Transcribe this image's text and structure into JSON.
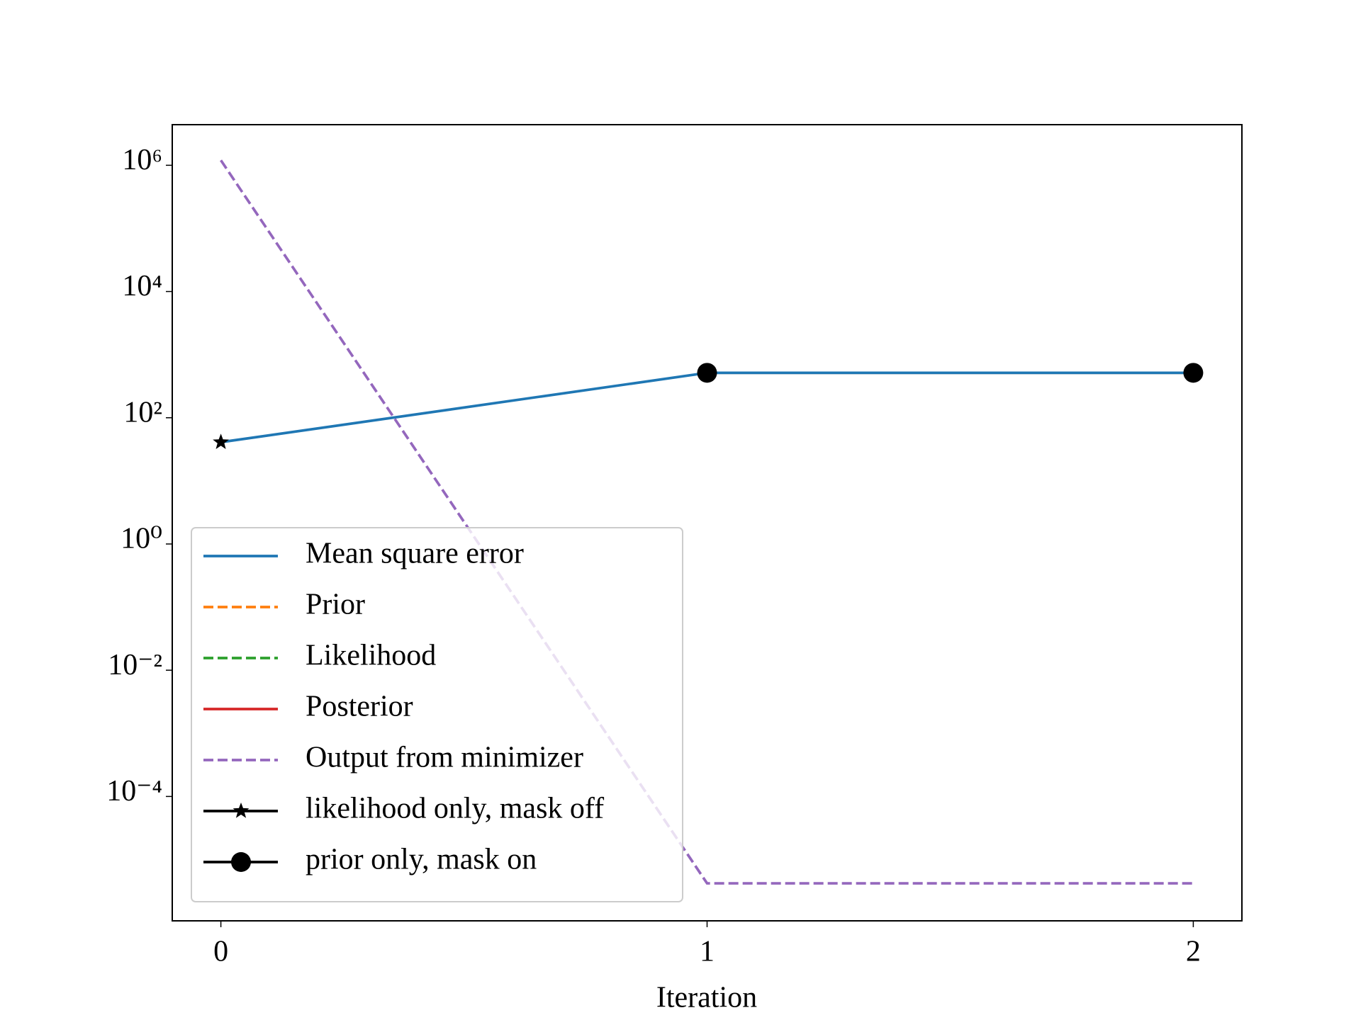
{
  "chart_data": {
    "type": "line",
    "x_label": "Iteration",
    "x": [
      0,
      1,
      2
    ],
    "xlim": [
      -0.1,
      2.1
    ],
    "xticks": [
      0,
      1,
      2
    ],
    "ylog": true,
    "ylim": [
      1.07e-06,
      4400000
    ],
    "yticks": [
      {
        "value": 1000000,
        "label": "10⁶"
      },
      {
        "value": 10000,
        "label": "10⁴"
      },
      {
        "value": 100,
        "label": "10²"
      },
      {
        "value": 1,
        "label": "10⁰"
      },
      {
        "value": 0.01,
        "label": "10⁻²"
      },
      {
        "value": 0.0001,
        "label": "10⁻⁴"
      }
    ],
    "grid": false,
    "legend": "lower left",
    "series": [
      {
        "name": "Mean square error",
        "color": "#1f77b4",
        "linestyle": "solid",
        "values": [
          41,
          515,
          515
        ]
      },
      {
        "name": "Prior",
        "color": "#ff7f0e",
        "linestyle": "dashed",
        "values": [
          null,
          null,
          null
        ]
      },
      {
        "name": "Likelihood",
        "color": "#2ca02c",
        "linestyle": "dashed",
        "values": [
          null,
          null,
          null
        ]
      },
      {
        "name": "Posterior",
        "color": "#d62728",
        "linestyle": "solid",
        "values": [
          null,
          null,
          null
        ]
      },
      {
        "name": "Output from minimizer",
        "color": "#9467bd",
        "linestyle": "dashed",
        "values": [
          1200000,
          4.2e-06,
          4.2e-06
        ]
      },
      {
        "name": "likelihood only, mask off",
        "color": "#000000",
        "linestyle": "solid",
        "marker": "star",
        "values": [
          41,
          null,
          null
        ]
      },
      {
        "name": "prior only, mask on",
        "color": "#000000",
        "linestyle": "solid",
        "marker": "circle",
        "values": [
          null,
          515,
          515
        ]
      }
    ]
  }
}
